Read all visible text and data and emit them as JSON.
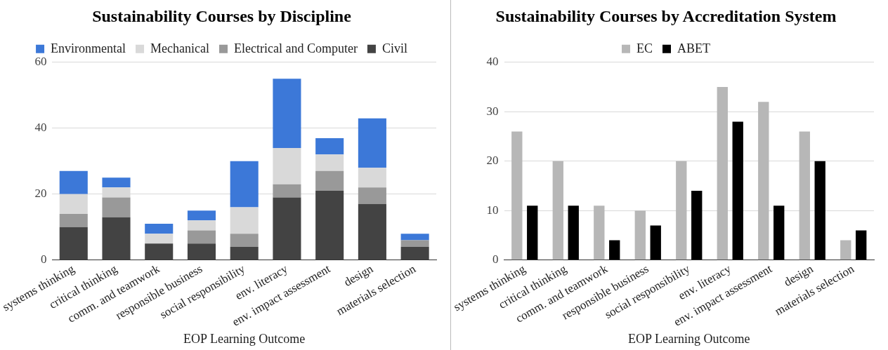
{
  "chart_data": [
    {
      "type": "bar",
      "title": "Sustainability Courses by Discipline",
      "xlabel": "EOP Learning Outcome",
      "stacked": true,
      "legend": "top",
      "grid": "y",
      "categories": [
        "systems thinking",
        "critical thinking",
        "comm. and teamwork",
        "responsible business",
        "social responsibility",
        "env. literacy",
        "env. impact assessment",
        "design",
        "materials selection"
      ],
      "series": [
        {
          "name": "Civil",
          "color": "#434343",
          "values": [
            10,
            13,
            5,
            5,
            4,
            19,
            21,
            17,
            4
          ]
        },
        {
          "name": "Electrical and Computer",
          "color": "#999999",
          "values": [
            4,
            6,
            0,
            4,
            4,
            4,
            6,
            5,
            2
          ]
        },
        {
          "name": "Mechanical",
          "color": "#d9d9d9",
          "values": [
            6,
            3,
            3,
            3,
            8,
            11,
            5,
            6,
            0
          ]
        },
        {
          "name": "Environmental",
          "color": "#3c78d8",
          "values": [
            7,
            3,
            3,
            3,
            14,
            21,
            5,
            15,
            2
          ]
        }
      ],
      "ylim": [
        0,
        60
      ],
      "yticks": [
        0,
        20,
        40,
        60
      ]
    },
    {
      "type": "bar",
      "title": "Sustainability Courses by Accreditation System",
      "xlabel": "EOP Learning Outcome",
      "legend": "top",
      "grid": "y",
      "categories": [
        "systems thinking",
        "critical thinking",
        "comm. and teamwork",
        "responsible business",
        "social responsibility",
        "env. literacy",
        "env. impact assessment",
        "design",
        "materials selection"
      ],
      "series": [
        {
          "name": "EC",
          "color": "#b7b7b7",
          "values": [
            26,
            20,
            11,
            10,
            20,
            35,
            32,
            26,
            4
          ]
        },
        {
          "name": "ABET",
          "color": "#000000",
          "values": [
            11,
            11,
            4,
            7,
            14,
            28,
            11,
            20,
            6
          ]
        }
      ],
      "ylim": [
        0,
        40
      ],
      "yticks": [
        0,
        10,
        20,
        30,
        40
      ]
    }
  ]
}
